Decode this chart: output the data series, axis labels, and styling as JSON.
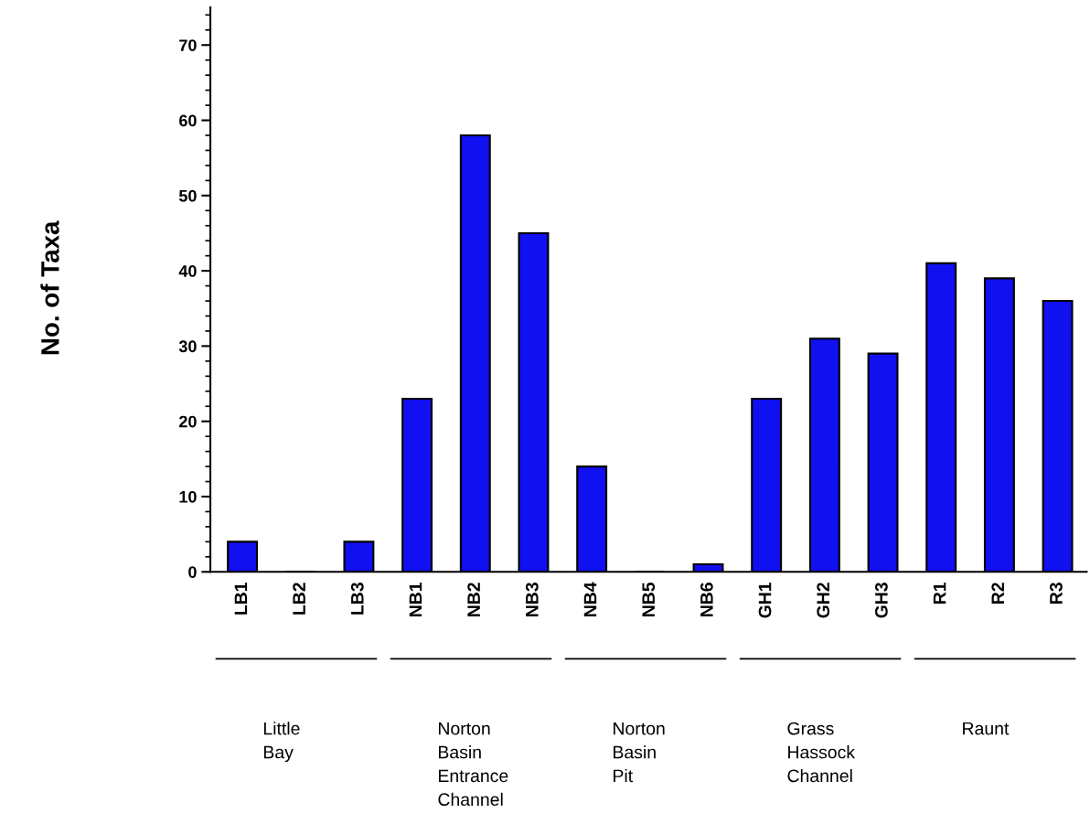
{
  "chart_data": {
    "type": "bar",
    "ylabel": "No. of Taxa",
    "categories": [
      "LB1",
      "LB2",
      "LB3",
      "NB1",
      "NB2",
      "NB3",
      "NB4",
      "NB5",
      "NB6",
      "GH1",
      "GH2",
      "GH3",
      "R1",
      "R2",
      "R3"
    ],
    "values": [
      4,
      0,
      4,
      23,
      58,
      45,
      14,
      0,
      1,
      23,
      31,
      29,
      41,
      39,
      36
    ],
    "color": "#1010f0",
    "ylim": [
      0,
      75
    ],
    "yticks": [
      0,
      10,
      20,
      30,
      40,
      50,
      60,
      70
    ],
    "grid": false,
    "legend": false,
    "annotations": [
      "Little\nBay",
      "Norton\nBasin\nEntrance\nChannel",
      "Norton\nBasin\nPit",
      "Grass\nHassock\nChannel",
      "Raunt"
    ]
  }
}
